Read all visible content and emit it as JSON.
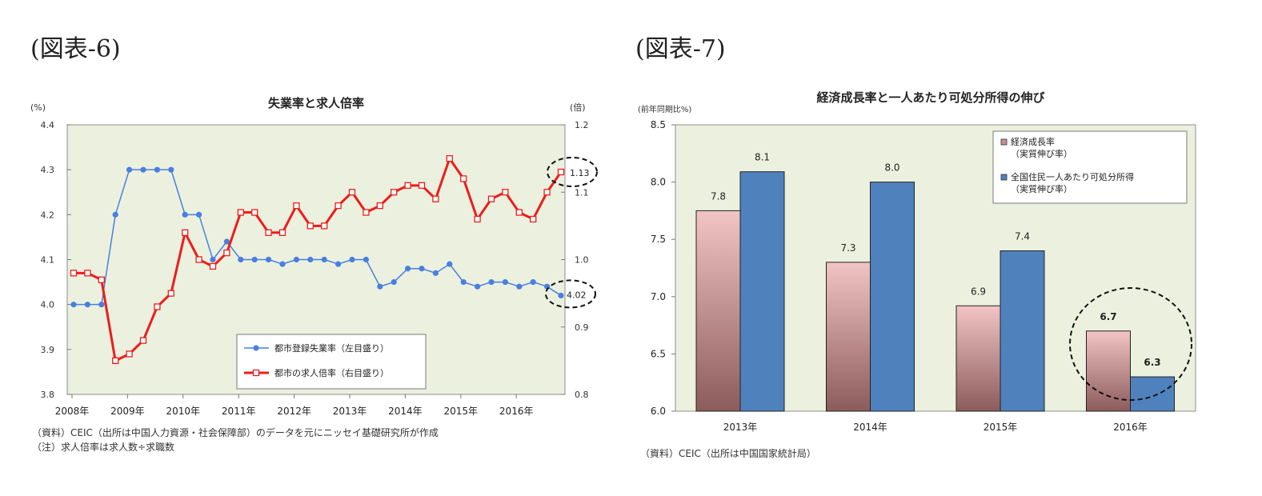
{
  "figure6": {
    "label": "(図表-6)",
    "chart_data": {
      "type": "line",
      "title": "失業率と求人倍率",
      "y_left_unit": "(%)",
      "y_right_unit": "(倍)",
      "y_left_range": [
        3.8,
        4.4
      ],
      "y_left_ticks": [
        "3.8",
        "3.9",
        "4.0",
        "4.1",
        "4.2",
        "4.3",
        "4.4"
      ],
      "y_right_range": [
        0.8,
        1.2
      ],
      "y_right_ticks": [
        "0.8",
        "0.9",
        "1.0",
        "1.1",
        "1.2"
      ],
      "x_ticks": [
        "2008年",
        "2009年",
        "2010年",
        "2011年",
        "2012年",
        "2013年",
        "2014年",
        "2015年",
        "2016年"
      ],
      "series": [
        {
          "name": "都市登録失業率（左目盛り）",
          "axis": "left",
          "color": "#4a7fe0",
          "marker": "circle",
          "values": [
            4.0,
            4.0,
            4.0,
            4.2,
            4.3,
            4.3,
            4.3,
            4.3,
            4.2,
            4.2,
            4.1,
            4.14,
            4.1,
            4.1,
            4.1,
            4.09,
            4.1,
            4.1,
            4.1,
            4.09,
            4.1,
            4.1,
            4.04,
            4.05,
            4.08,
            4.08,
            4.07,
            4.09,
            4.05,
            4.04,
            4.05,
            4.05,
            4.04,
            4.05,
            4.04,
            4.02
          ]
        },
        {
          "name": "都市の求人倍率（右目盛り）",
          "axis": "right",
          "color": "#ee1c1c",
          "marker": "square",
          "values": [
            0.98,
            0.98,
            0.97,
            0.85,
            0.86,
            0.88,
            0.93,
            0.95,
            1.04,
            1.0,
            0.99,
            1.01,
            1.07,
            1.07,
            1.04,
            1.04,
            1.08,
            1.05,
            1.05,
            1.08,
            1.1,
            1.07,
            1.08,
            1.1,
            1.11,
            1.11,
            1.09,
            1.15,
            1.12,
            1.06,
            1.09,
            1.1,
            1.07,
            1.06,
            1.1,
            1.13
          ]
        }
      ],
      "annotations": [
        "1.13",
        "4.02"
      ],
      "legend_position": "bottom-right"
    },
    "notes": [
      "（資料）CEIC（出所は中国人力資源・社会保障部）のデータを元にニッセイ基礎研究所が作成",
      "（注）求人倍率は求人数÷求職数"
    ]
  },
  "figure7": {
    "label": "(図表-7)",
    "chart_data": {
      "type": "bar",
      "title": "経済成長率と一人あたり可処分所得の伸び",
      "y_unit": "(前年同期比%)",
      "ylim": [
        6.0,
        8.5
      ],
      "y_ticks": [
        "6.0",
        "6.5",
        "7.0",
        "7.5",
        "8.0",
        "8.5"
      ],
      "categories": [
        "2013年",
        "2014年",
        "2015年",
        "2016年"
      ],
      "series": [
        {
          "name": "経済成長率（実質伸び率）",
          "legend_line1": "経済成長率",
          "legend_line2": "（実質伸び率）",
          "color": "#d9a0a0",
          "values": [
            7.75,
            7.3,
            6.92,
            6.7
          ],
          "labels": [
            "7.8",
            "7.3",
            "6.9",
            "6.7"
          ]
        },
        {
          "name": "全国住民一人あたり可処分所得（実質伸び率）",
          "legend_line1": "全国住民一人あたり可処分所得",
          "legend_line2": "（実質伸び率）",
          "color": "#4f81bd",
          "values": [
            8.09,
            8.0,
            7.4,
            6.3
          ],
          "labels": [
            "8.1",
            "8.0",
            "7.4",
            "6.3"
          ]
        }
      ],
      "legend_position": "top-right"
    },
    "notes": [
      "（資料）CEIC（出所は中国国家統計局）"
    ]
  }
}
